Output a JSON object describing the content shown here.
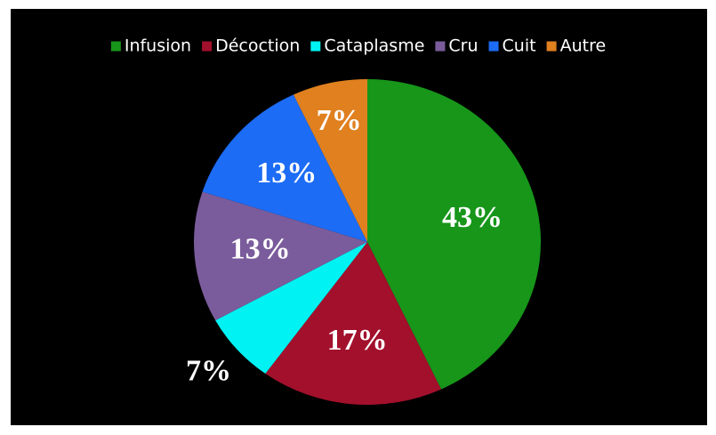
{
  "chart_data": {
    "type": "pie",
    "categories": [
      "Infusion",
      "Décoction",
      "Cataplasme",
      "Cru",
      "Cuit",
      "Autre"
    ],
    "values": [
      43,
      17,
      7,
      13,
      13,
      7
    ],
    "value_labels": [
      "43%",
      "17%",
      "7%",
      "13%",
      "13%",
      "7%"
    ],
    "colors": [
      "#17961a",
      "#a3102c",
      "#00f2f2",
      "#7a5c9c",
      "#1c6cf5",
      "#e0801f"
    ],
    "legend": "top"
  }
}
